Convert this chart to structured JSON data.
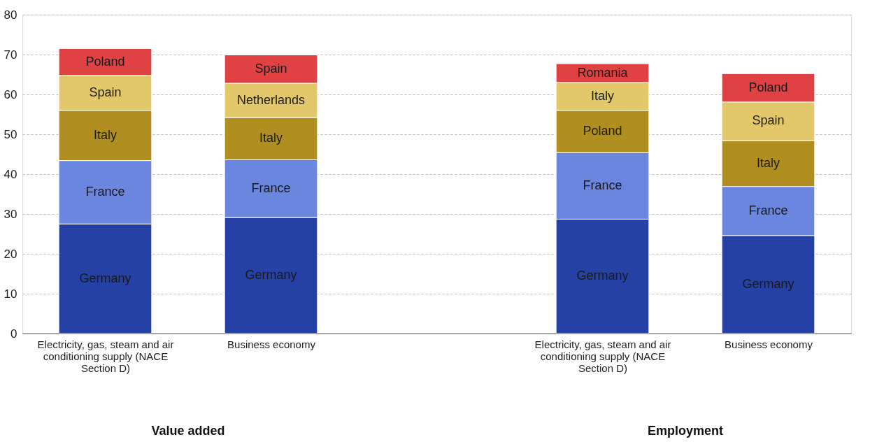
{
  "chart_data": {
    "type": "bar",
    "stacked": true,
    "categories": [
      "Electricity, gas, steam and air conditioning supply (NACE Section D)",
      "Business economy",
      null,
      "Electricity, gas, steam and air conditioning supply (NACE Section D)",
      "Business economy"
    ],
    "series": [
      {
        "color": "#2541a5",
        "values": [
          27.5,
          29.1,
          null,
          28.7,
          24.6
        ],
        "value_labels": [
          "Germany",
          "Germany",
          null,
          "Germany",
          "Germany"
        ]
      },
      {
        "color": "#6b86df",
        "values": [
          15.9,
          14.5,
          null,
          16.7,
          12.3
        ],
        "value_labels": [
          "France",
          "France",
          null,
          "France",
          "France"
        ]
      },
      {
        "color": "#b08f20",
        "values": [
          12.6,
          10.6,
          null,
          10.6,
          11.5
        ],
        "value_labels": [
          "Italy",
          "Italy",
          null,
          "Poland",
          "Italy"
        ]
      },
      {
        "color": "#e2c86a",
        "values": [
          8.8,
          8.6,
          null,
          7.0,
          9.7
        ],
        "value_labels": [
          "Spain",
          "Netherlands",
          null,
          "Italy",
          "Spain"
        ]
      },
      {
        "color": "#e04244",
        "values": [
          6.7,
          7.1,
          null,
          4.7,
          7.1
        ],
        "value_labels": [
          "Poland",
          "Spain",
          null,
          "Romania",
          "Poland"
        ]
      }
    ],
    "ylim": [
      0,
      80
    ],
    "yticks": [
      0,
      10,
      20,
      30,
      40,
      50,
      60,
      70,
      80
    ],
    "grid": "y",
    "legend": false,
    "annotations": [
      "Value added",
      "Employment"
    ]
  }
}
